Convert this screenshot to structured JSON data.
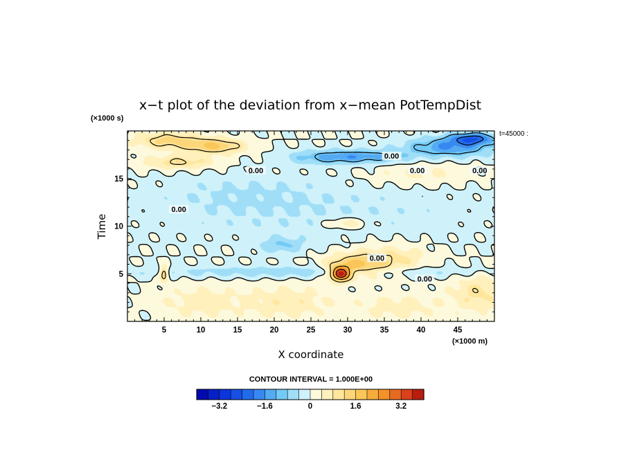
{
  "chart_data": {
    "type": "heatmap",
    "title": "x−t plot of the deviation from x−mean PotTempDist",
    "xlabel": "X coordinate",
    "ylabel": "Time",
    "x_unit": "(×1000 m)",
    "y_unit": "(×1000 s)",
    "time_label": "t=45000 :",
    "xlim": [
      0,
      50
    ],
    "ylim": [
      0,
      20
    ],
    "xticks": [
      "5",
      "10",
      "15",
      "20",
      "25",
      "30",
      "35",
      "40",
      "45"
    ],
    "yticks": [
      "5",
      "10",
      "15"
    ],
    "contour_interval_text": "CONTOUR INTERVAL = 1.000E+00",
    "contour_label": "0.00",
    "colorbar": {
      "min": -4.0,
      "max": 4.0,
      "step": 0.4,
      "tick_labels": [
        "−3.2",
        "−1.6",
        "0",
        "1.6",
        "3.2"
      ],
      "tick_values": [
        -3.2,
        -1.6,
        0,
        1.6,
        3.2
      ]
    },
    "fields": [
      {
        "x": 5.5,
        "t": 19.0,
        "v": 1.3,
        "sx": 4.5,
        "st": 0.9
      },
      {
        "x": 12,
        "t": 18.4,
        "v": 1.6,
        "sx": 4.0,
        "st": 0.8
      },
      {
        "x": 7,
        "t": 16.7,
        "v": 1.1,
        "sx": 5.0,
        "st": 0.7
      },
      {
        "x": 26,
        "t": 17.2,
        "v": -0.7,
        "sx": 5.0,
        "st": 0.8
      },
      {
        "x": 32,
        "t": 17.3,
        "v": -1.3,
        "sx": 6.0,
        "st": 0.7
      },
      {
        "x": 44,
        "t": 18.3,
        "v": -1.6,
        "sx": 6.0,
        "st": 1.0
      },
      {
        "x": 47,
        "t": 19.2,
        "v": -2.0,
        "sx": 3.0,
        "st": 0.6
      },
      {
        "x": 40,
        "t": 15.4,
        "v": 0.5,
        "sx": 7.0,
        "st": 1.2
      },
      {
        "x": 25,
        "t": 11.5,
        "v": -0.35,
        "sx": 25.0,
        "st": 3.0
      },
      {
        "x": 30,
        "t": 10.3,
        "v": 0.8,
        "sx": 3.0,
        "st": 0.6
      },
      {
        "x": 21,
        "t": 8.0,
        "v": -0.8,
        "sx": 3.0,
        "st": 0.8
      },
      {
        "x": 29,
        "t": 5.0,
        "v": 3.6,
        "sx": 1.3,
        "st": 0.7
      },
      {
        "x": 31,
        "t": 5.8,
        "v": 1.6,
        "sx": 4.0,
        "st": 1.2
      },
      {
        "x": 36,
        "t": 6.5,
        "v": 0.9,
        "sx": 5.0,
        "st": 1.5
      },
      {
        "x": 5,
        "t": 5.0,
        "v": 1.6,
        "sx": 0.6,
        "st": 0.8
      },
      {
        "x": 25,
        "t": 5.2,
        "v": -0.7,
        "sx": 25.0,
        "st": 0.6
      },
      {
        "x": 10,
        "t": 2.0,
        "v": 0.6,
        "sx": 6.0,
        "st": 1.8
      },
      {
        "x": 22,
        "t": 2.0,
        "v": 0.7,
        "sx": 6.0,
        "st": 1.8
      },
      {
        "x": 37,
        "t": 1.5,
        "v": 0.6,
        "sx": 6.0,
        "st": 1.5
      },
      {
        "x": 48,
        "t": 3.0,
        "v": 0.9,
        "sx": 4.0,
        "st": 2.0
      },
      {
        "x": 16,
        "t": 13.5,
        "v": -0.3,
        "sx": 10.0,
        "st": 2.0
      }
    ],
    "colors": {
      "negative_strong": "#0a22c8",
      "neutral": "#f2fbfb",
      "positive_strong": "#c01010",
      "contour": "#000000"
    }
  }
}
